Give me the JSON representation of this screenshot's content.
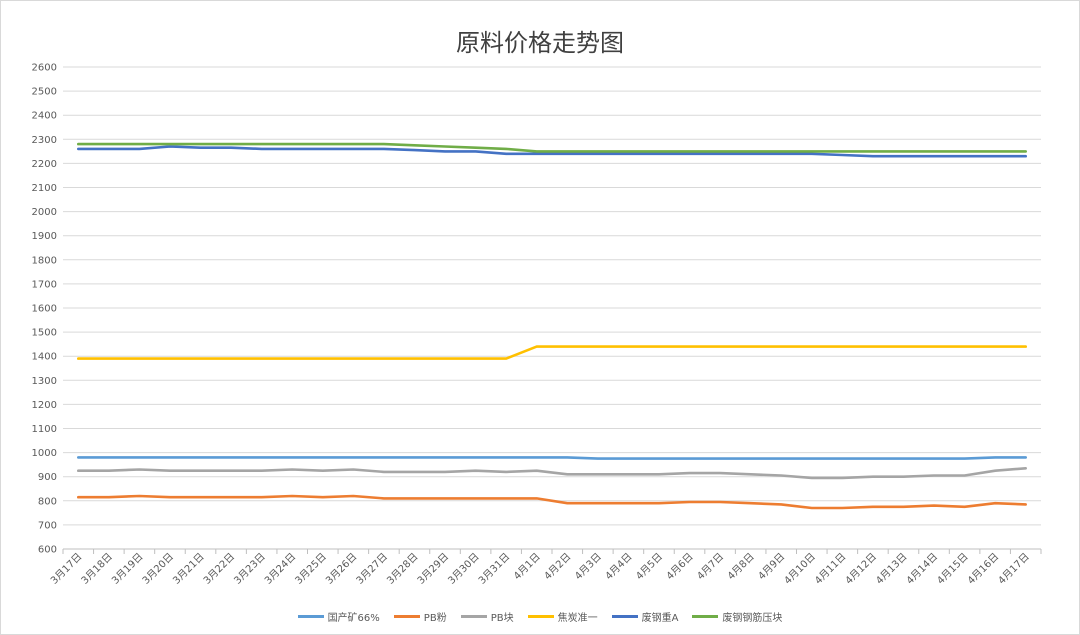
{
  "chart_data": {
    "type": "line",
    "title": "原料价格走势图",
    "xlabel": "",
    "ylabel": "",
    "ylim": [
      600,
      2600
    ],
    "yticks": [
      600,
      700,
      800,
      900,
      1000,
      1100,
      1200,
      1300,
      1400,
      1500,
      1600,
      1700,
      1800,
      1900,
      2000,
      2100,
      2200,
      2300,
      2400,
      2500,
      2600
    ],
    "grid": true,
    "legend_position": "bottom",
    "categories": [
      "3月17日",
      "3月18日",
      "3月19日",
      "3月20日",
      "3月21日",
      "3月22日",
      "3月23日",
      "3月24日",
      "3月25日",
      "3月26日",
      "3月27日",
      "3月28日",
      "3月29日",
      "3月30日",
      "3月31日",
      "4月1日",
      "4月2日",
      "4月3日",
      "4月4日",
      "4月5日",
      "4月6日",
      "4月7日",
      "4月8日",
      "4月9日",
      "4月10日",
      "4月11日",
      "4月12日",
      "4月13日",
      "4月14日",
      "4月15日",
      "4月16日",
      "4月17日"
    ],
    "series": [
      {
        "name": "国产矿66%",
        "color": "#5b9bd5",
        "values": [
          980,
          980,
          980,
          980,
          980,
          980,
          980,
          980,
          980,
          980,
          980,
          980,
          980,
          980,
          980,
          980,
          980,
          975,
          975,
          975,
          975,
          975,
          975,
          975,
          975,
          975,
          975,
          975,
          975,
          975,
          980,
          980
        ]
      },
      {
        "name": "PB粉",
        "color": "#ed7d31",
        "values": [
          815,
          815,
          820,
          815,
          815,
          815,
          815,
          820,
          815,
          820,
          810,
          810,
          810,
          810,
          810,
          810,
          790,
          790,
          790,
          790,
          795,
          795,
          790,
          785,
          770,
          770,
          775,
          775,
          780,
          775,
          790,
          785
        ]
      },
      {
        "name": "PB块",
        "color": "#a5a5a5",
        "values": [
          925,
          925,
          930,
          925,
          925,
          925,
          925,
          930,
          925,
          930,
          920,
          920,
          920,
          925,
          920,
          925,
          910,
          910,
          910,
          910,
          915,
          915,
          910,
          905,
          895,
          895,
          900,
          900,
          905,
          905,
          925,
          935
        ]
      },
      {
        "name": "焦炭准一",
        "color": "#ffc000",
        "values": [
          1390,
          1390,
          1390,
          1390,
          1390,
          1390,
          1390,
          1390,
          1390,
          1390,
          1390,
          1390,
          1390,
          1390,
          1390,
          1440,
          1440,
          1440,
          1440,
          1440,
          1440,
          1440,
          1440,
          1440,
          1440,
          1440,
          1440,
          1440,
          1440,
          1440,
          1440,
          1440
        ]
      },
      {
        "name": "废钢重A",
        "color": "#4472c4",
        "values": [
          2260,
          2260,
          2260,
          2270,
          2265,
          2265,
          2260,
          2260,
          2260,
          2260,
          2260,
          2255,
          2250,
          2250,
          2240,
          2240,
          2240,
          2240,
          2240,
          2240,
          2240,
          2240,
          2240,
          2240,
          2240,
          2235,
          2230,
          2230,
          2230,
          2230,
          2230,
          2230
        ]
      },
      {
        "name": "废钢钢筋压块",
        "color": "#70ad47",
        "values": [
          2280,
          2280,
          2280,
          2280,
          2280,
          2280,
          2280,
          2280,
          2280,
          2280,
          2280,
          2275,
          2270,
          2265,
          2260,
          2250,
          2250,
          2250,
          2250,
          2250,
          2250,
          2250,
          2250,
          2250,
          2250,
          2250,
          2250,
          2250,
          2250,
          2250,
          2250,
          2250
        ]
      }
    ]
  }
}
